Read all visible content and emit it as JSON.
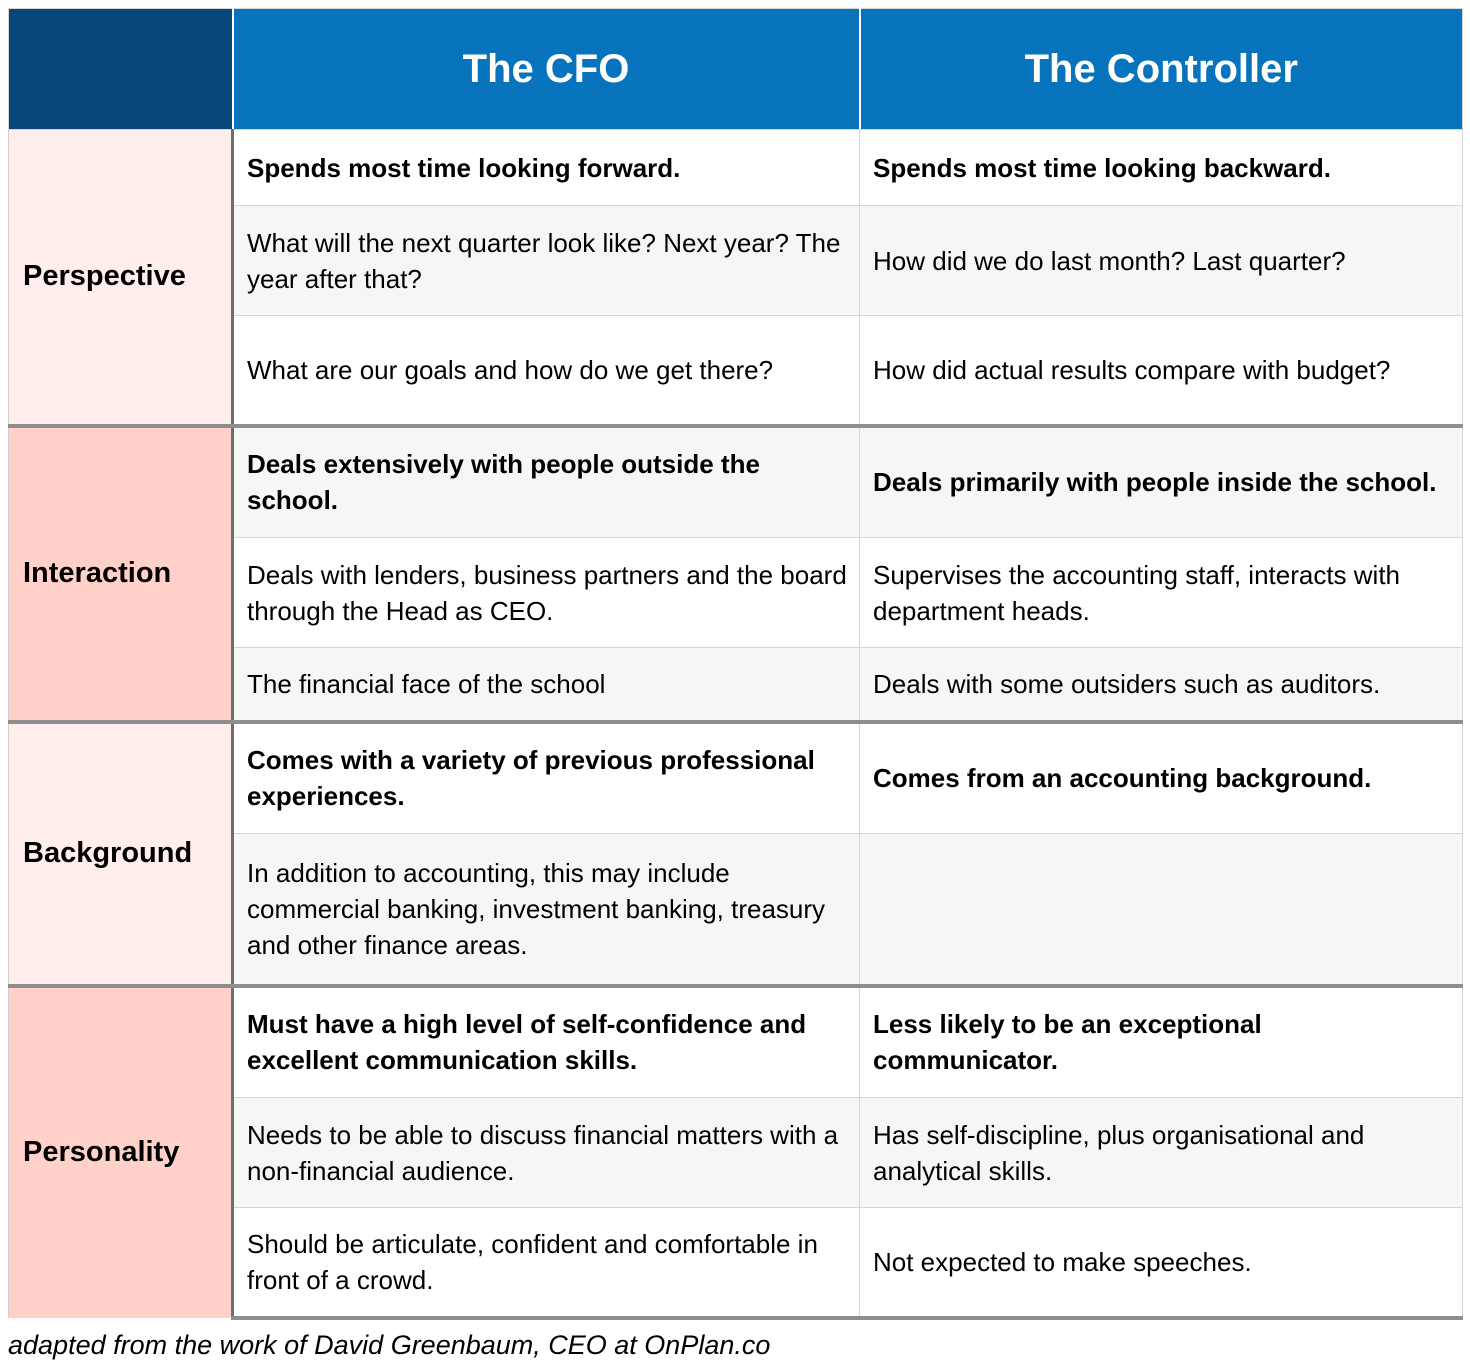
{
  "header": {
    "cfo": "The CFO",
    "controller": "The Controller"
  },
  "sections": {
    "perspective": {
      "label": "Perspective",
      "rows": [
        {
          "cfo": "Spends most time looking forward.",
          "controller": "Spends most time looking backward."
        },
        {
          "cfo": "What will the next quarter look like?  Next year?  The year after that?",
          "controller": "How did we do last month?  Last quarter?"
        },
        {
          "cfo": "What are our goals and how do we get there?",
          "controller": "How did actual results compare with budget?"
        }
      ]
    },
    "interaction": {
      "label": "Interaction",
      "rows": [
        {
          "cfo": "Deals extensively with people outside the school.",
          "controller": "Deals primarily with people inside the school."
        },
        {
          "cfo": "Deals with lenders, business partners and the board through the Head as CEO.",
          "controller": "Supervises the accounting staff, interacts with department heads."
        },
        {
          "cfo": "The financial face of the school",
          "controller": "Deals with some outsiders such as auditors."
        }
      ]
    },
    "background": {
      "label": "Background",
      "rows": [
        {
          "cfo": "Comes with a variety of previous professional experiences.",
          "controller": "Comes from an accounting background."
        },
        {
          "cfo": "In addition to accounting, this may include commercial banking, investment banking, treasury and other finance areas.",
          "controller": ""
        }
      ]
    },
    "personality": {
      "label": "Personality",
      "rows": [
        {
          "cfo": "Must have a high level of self-confidence and excellent communication skills.",
          "controller": "Less likely to be an exceptional communicator."
        },
        {
          "cfo": "Needs to be able to discuss financial matters with a non-financial audience.",
          "controller": "Has self-discipline, plus organisational and analytical skills."
        },
        {
          "cfo": "Should be articulate, confident and comfortable in front of a crowd.",
          "controller": "Not expected to make speeches."
        }
      ]
    }
  },
  "footer": {
    "credit": "adapted from the work of David Greenbaum, CEO at OnPlan.co"
  }
}
